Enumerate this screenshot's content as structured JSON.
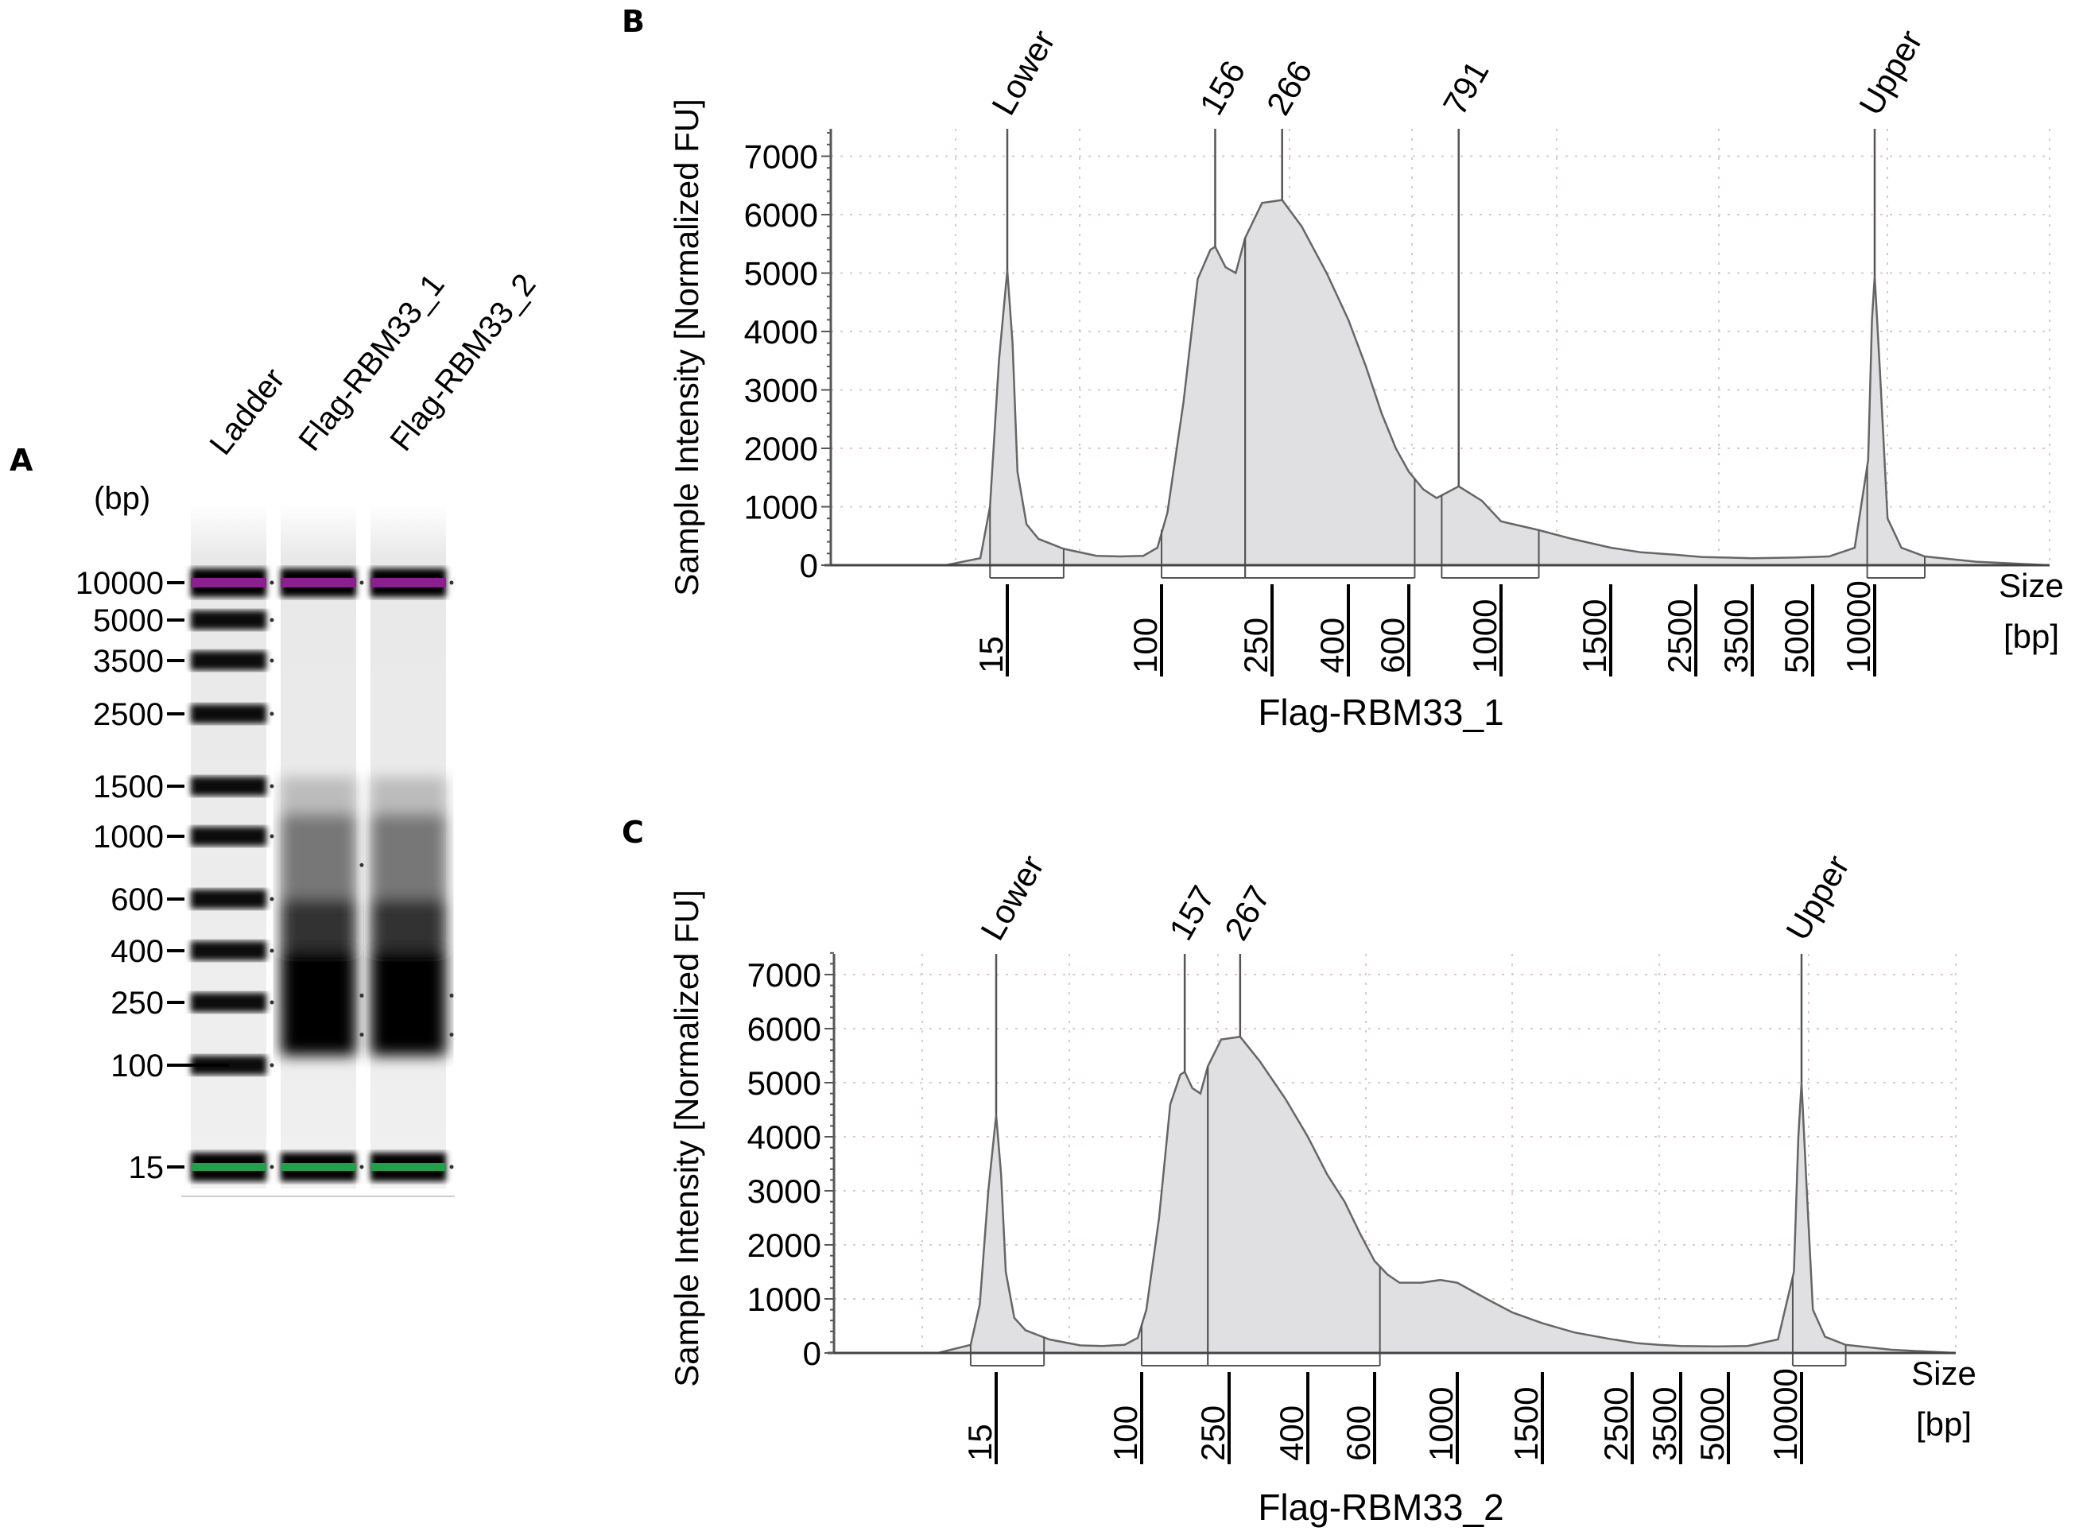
{
  "panels": {
    "A": {
      "label": "A",
      "unit_label": "(bp)",
      "lanes": [
        "Ladder",
        "Flag-RBM33_1",
        "Flag-RBM33_2"
      ],
      "size_markers": [
        "10000",
        "5000",
        "3500",
        "2500",
        "1500",
        "1000",
        "600",
        "400",
        "250",
        "100",
        "15"
      ],
      "colors": {
        "upper_marker": "#8b1f8f",
        "lower_marker": "#1fa04a",
        "band": "#000000"
      }
    },
    "B": {
      "label": "B"
    },
    "C": {
      "label": "C"
    }
  },
  "chart_data": [
    {
      "type": "area",
      "panel": "B",
      "title": "",
      "xlabel": "Flag-RBM33_1",
      "xlabel_unit": [
        "Size",
        "[bp]"
      ],
      "ylabel": "Sample Intensity [Normalized FU]",
      "ylim": [
        0,
        7500
      ],
      "yticks": [
        "0",
        "1000",
        "2000",
        "3000",
        "4000",
        "5000",
        "6000",
        "7000"
      ],
      "xticks": [
        "15",
        "100",
        "250",
        "400",
        "600",
        "1000",
        "1500",
        "2500",
        "3500",
        "5000",
        "10000"
      ],
      "grid": true,
      "peak_labels": [
        {
          "label": "Lower",
          "size_bp": 15,
          "value": 5050
        },
        {
          "label": "156",
          "size_bp": 156,
          "value": 5450
        },
        {
          "label": "266",
          "size_bp": 266,
          "value": 6250
        },
        {
          "label": "791",
          "size_bp": 791,
          "value": 1350
        },
        {
          "label": "Upper",
          "size_bp": 10000,
          "value": 4950
        }
      ],
      "trace": {
        "size_bp": [
          5,
          9,
          12,
          13,
          14,
          15,
          16,
          17,
          19,
          22,
          30,
          45,
          60,
          80,
          95,
          105,
          120,
          135,
          150,
          156,
          170,
          185,
          200,
          230,
          266,
          300,
          350,
          400,
          450,
          500,
          550,
          600,
          650,
          700,
          791,
          900,
          1000,
          1150,
          1300,
          1500,
          1800,
          2200,
          2600,
          3000,
          3500,
          4500,
          6000,
          8000,
          9300,
          9700,
          10000,
          10300,
          10700,
          11500,
          13000,
          17000,
          25000
        ],
        "value": [
          0,
          0,
          120,
          1000,
          3500,
          5050,
          3800,
          1600,
          700,
          450,
          280,
          160,
          150,
          160,
          300,
          900,
          2800,
          4900,
          5400,
          5450,
          5100,
          5000,
          5600,
          6200,
          6250,
          5800,
          5000,
          4200,
          3400,
          2600,
          2000,
          1600,
          1300,
          1150,
          1350,
          1100,
          750,
          600,
          450,
          300,
          220,
          180,
          140,
          130,
          120,
          130,
          150,
          300,
          1800,
          4200,
          4950,
          3200,
          800,
          300,
          150,
          60,
          0
        ]
      },
      "regions": [
        [
          13,
          30
        ],
        [
          100,
          200
        ],
        [
          200,
          620
        ],
        [
          720,
          1150
        ],
        [
          9200,
          13000
        ]
      ]
    },
    {
      "type": "area",
      "panel": "C",
      "title": "",
      "xlabel": "Flag-RBM33_2",
      "xlabel_unit": [
        "Size",
        "[bp]"
      ],
      "ylabel": "Sample Intensity [Normalized FU]",
      "ylim": [
        0,
        7500
      ],
      "yticks": [
        "0",
        "1000",
        "2000",
        "3000",
        "4000",
        "5000",
        "6000",
        "7000"
      ],
      "xticks": [
        "15",
        "100",
        "250",
        "400",
        "600",
        "1000",
        "1500",
        "2500",
        "3500",
        "5000",
        "10000"
      ],
      "grid": true,
      "peak_labels": [
        {
          "label": "Lower",
          "size_bp": 15,
          "value": 4400
        },
        {
          "label": "157",
          "size_bp": 157,
          "value": 5200
        },
        {
          "label": "267",
          "size_bp": 267,
          "value": 5850
        },
        {
          "label": "Upper",
          "size_bp": 10000,
          "value": 5000
        }
      ],
      "trace": {
        "size_bp": [
          5,
          9,
          12,
          13,
          14,
          15,
          16,
          17,
          19,
          22,
          30,
          45,
          60,
          80,
          95,
          105,
          120,
          135,
          150,
          157,
          170,
          185,
          200,
          230,
          267,
          300,
          350,
          400,
          450,
          500,
          550,
          600,
          650,
          700,
          800,
          900,
          1000,
          1150,
          1300,
          1500,
          1800,
          2200,
          2600,
          3000,
          3500,
          4500,
          6000,
          8000,
          9300,
          9700,
          10000,
          10300,
          10700,
          11500,
          13000,
          17000,
          25000
        ],
        "value": [
          0,
          0,
          150,
          900,
          3000,
          4400,
          3300,
          1500,
          650,
          420,
          250,
          140,
          130,
          150,
          280,
          800,
          2500,
          4600,
          5150,
          5200,
          4900,
          4800,
          5300,
          5800,
          5850,
          5400,
          4700,
          4000,
          3300,
          2800,
          2200,
          1700,
          1450,
          1300,
          1300,
          1350,
          1300,
          1000,
          750,
          550,
          380,
          260,
          180,
          150,
          130,
          120,
          130,
          250,
          1500,
          4000,
          5000,
          3100,
          800,
          300,
          150,
          60,
          0
        ]
      },
      "regions": [
        [
          12,
          28
        ],
        [
          100,
          200
        ],
        [
          200,
          620
        ],
        [
          9200,
          13000
        ]
      ]
    }
  ]
}
